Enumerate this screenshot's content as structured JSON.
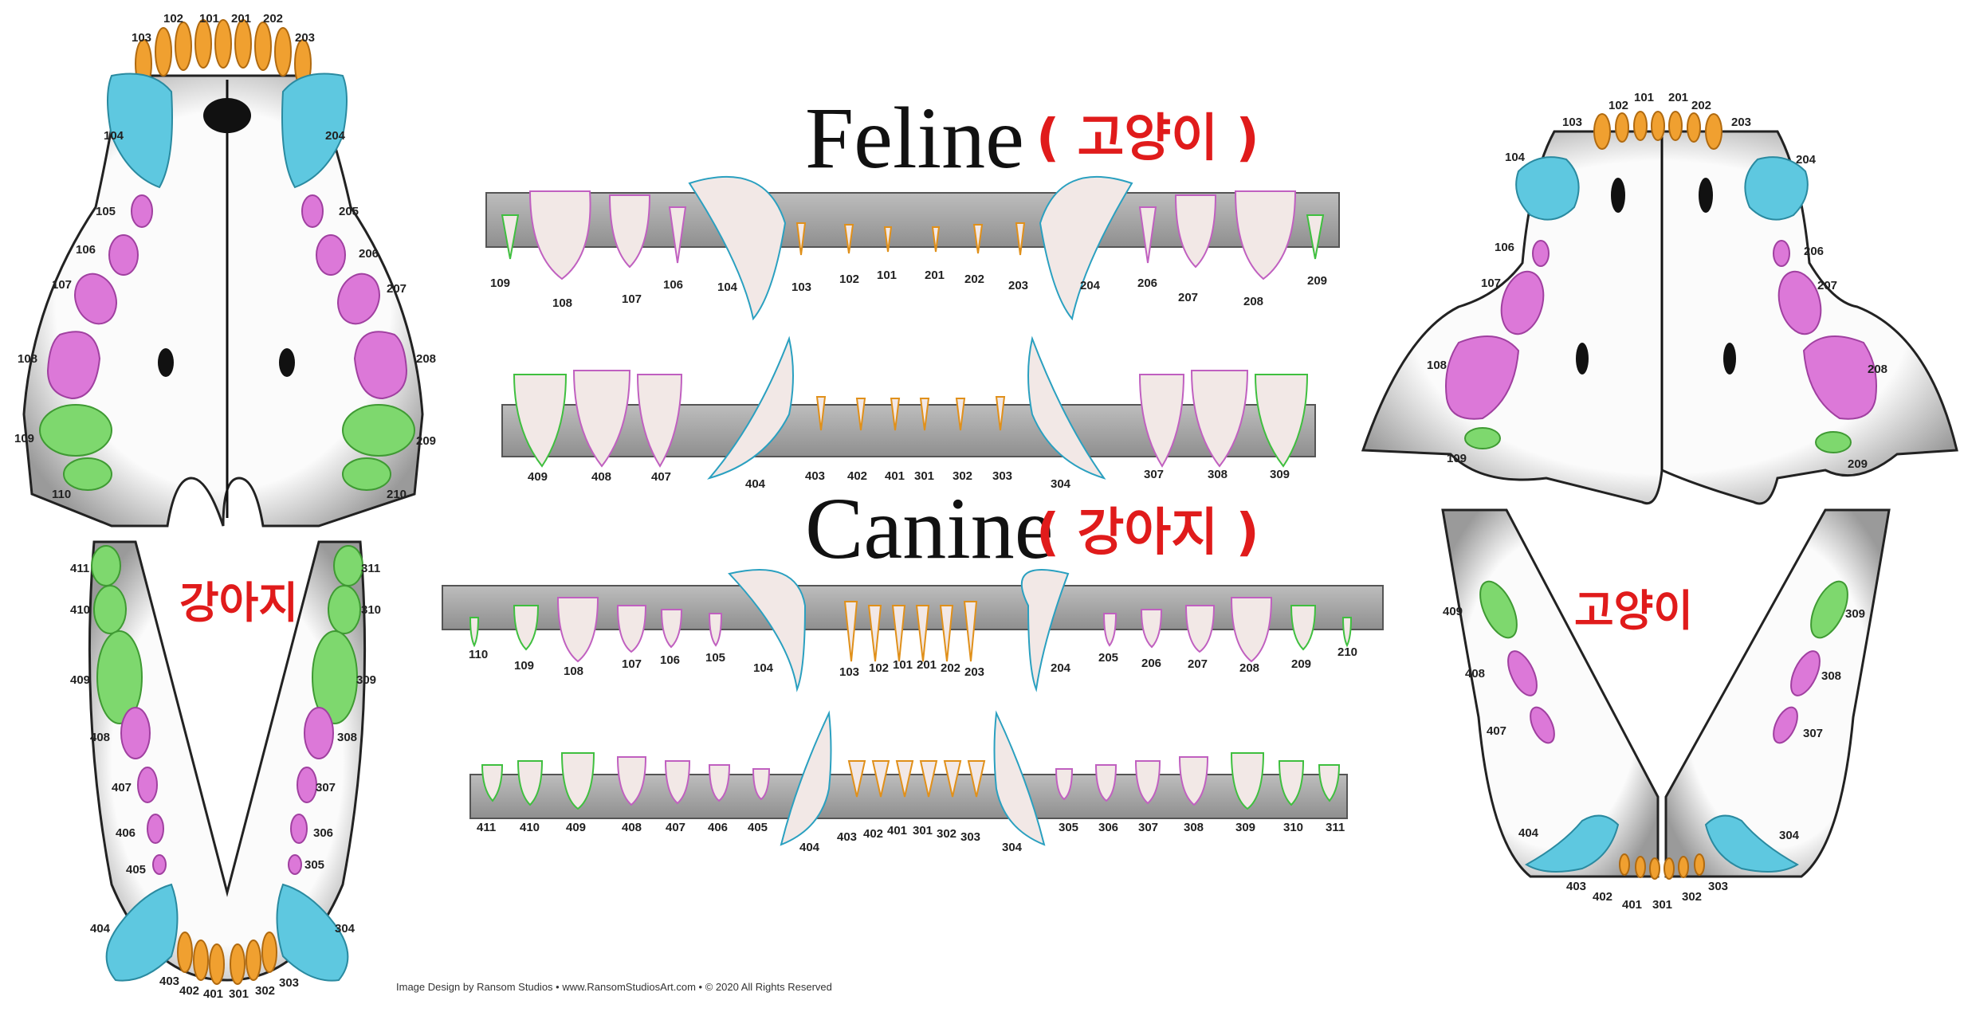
{
  "colors": {
    "incisor": "#f0a030",
    "canine": "#5ec8e0",
    "premolar": "#dc78d8",
    "molar": "#7ed86e",
    "title_accent": "#e01b1b",
    "bone": "#f6f6f6",
    "bar": "#a8a8a8"
  },
  "titles": {
    "feline_en": "Feline",
    "feline_kr": "( 고양이 )",
    "canine_en": "Canine",
    "canine_kr": "( 강아지 )",
    "dog_kr": "강아지",
    "cat_kr": "고양이"
  },
  "credit": "Image Design by Ransom Studios • www.RansomStudiosArt.com • © 2020 All Rights Reserved",
  "dog_upper_jaw": {
    "labels": [
      "102",
      "101",
      "201",
      "202",
      "103",
      "203",
      "104",
      "204",
      "105",
      "205",
      "106",
      "206",
      "107",
      "207",
      "108",
      "208",
      "109",
      "209",
      "110",
      "210"
    ]
  },
  "dog_lower_jaw": {
    "labels": [
      "411",
      "311",
      "410",
      "310",
      "409",
      "309",
      "408",
      "308",
      "407",
      "307",
      "406",
      "306",
      "405",
      "305",
      "404",
      "304",
      "403",
      "402",
      "401",
      "301",
      "302",
      "303"
    ]
  },
  "cat_upper_jaw": {
    "labels": [
      "102",
      "101",
      "201",
      "202",
      "103",
      "203",
      "104",
      "204",
      "106",
      "206",
      "107",
      "207",
      "108",
      "208",
      "109",
      "209"
    ]
  },
  "cat_lower_jaw": {
    "labels": [
      "409",
      "309",
      "408",
      "308",
      "407",
      "307",
      "404",
      "304",
      "403",
      "402",
      "401",
      "301",
      "302",
      "303"
    ]
  },
  "feline_upper_row": {
    "labels": [
      "109",
      "108",
      "107",
      "106",
      "104",
      "103",
      "102",
      "101",
      "201",
      "202",
      "203",
      "204",
      "206",
      "207",
      "208",
      "209"
    ]
  },
  "feline_lower_row": {
    "labels": [
      "409",
      "408",
      "407",
      "404",
      "403",
      "402",
      "401",
      "301",
      "302",
      "303",
      "304",
      "307",
      "308",
      "309"
    ]
  },
  "canine_upper_row": {
    "labels": [
      "110",
      "109",
      "108",
      "107",
      "106",
      "105",
      "104",
      "103",
      "102",
      "101",
      "201",
      "202",
      "203",
      "204",
      "205",
      "206",
      "207",
      "208",
      "209",
      "210"
    ]
  },
  "canine_lower_row": {
    "labels": [
      "411",
      "410",
      "409",
      "408",
      "407",
      "406",
      "405",
      "404",
      "403",
      "402",
      "401",
      "301",
      "302",
      "303",
      "304",
      "305",
      "306",
      "307",
      "308",
      "309",
      "310",
      "311"
    ]
  }
}
